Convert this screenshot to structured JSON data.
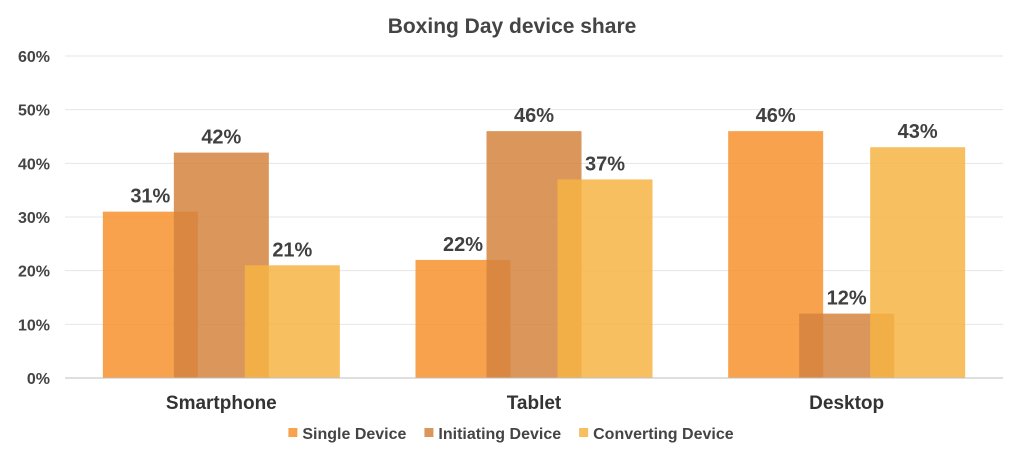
{
  "chart_data": {
    "type": "bar",
    "title": "Boxing Day device share",
    "categories": [
      "Smartphone",
      "Tablet",
      "Desktop"
    ],
    "series": [
      {
        "name": "Single Device",
        "values": [
          31,
          22,
          46
        ],
        "labels": [
          "31%",
          "22%",
          "46%"
        ],
        "color": "#F7922F"
      },
      {
        "name": "Initiating Device",
        "values": [
          42,
          46,
          12
        ],
        "labels": [
          "42%",
          "46%",
          "12%"
        ],
        "color": "#D5843F"
      },
      {
        "name": "Converting Device",
        "values": [
          21,
          37,
          43
        ],
        "labels": [
          "21%",
          "37%",
          "43%"
        ],
        "color": "#F6B443"
      }
    ],
    "ylim": [
      0,
      60
    ],
    "yticks": [
      "0%",
      "10%",
      "20%",
      "30%",
      "40%",
      "50%",
      "60%"
    ],
    "xlabel": "",
    "ylabel": "",
    "grid": true,
    "legend_position": "bottom"
  }
}
